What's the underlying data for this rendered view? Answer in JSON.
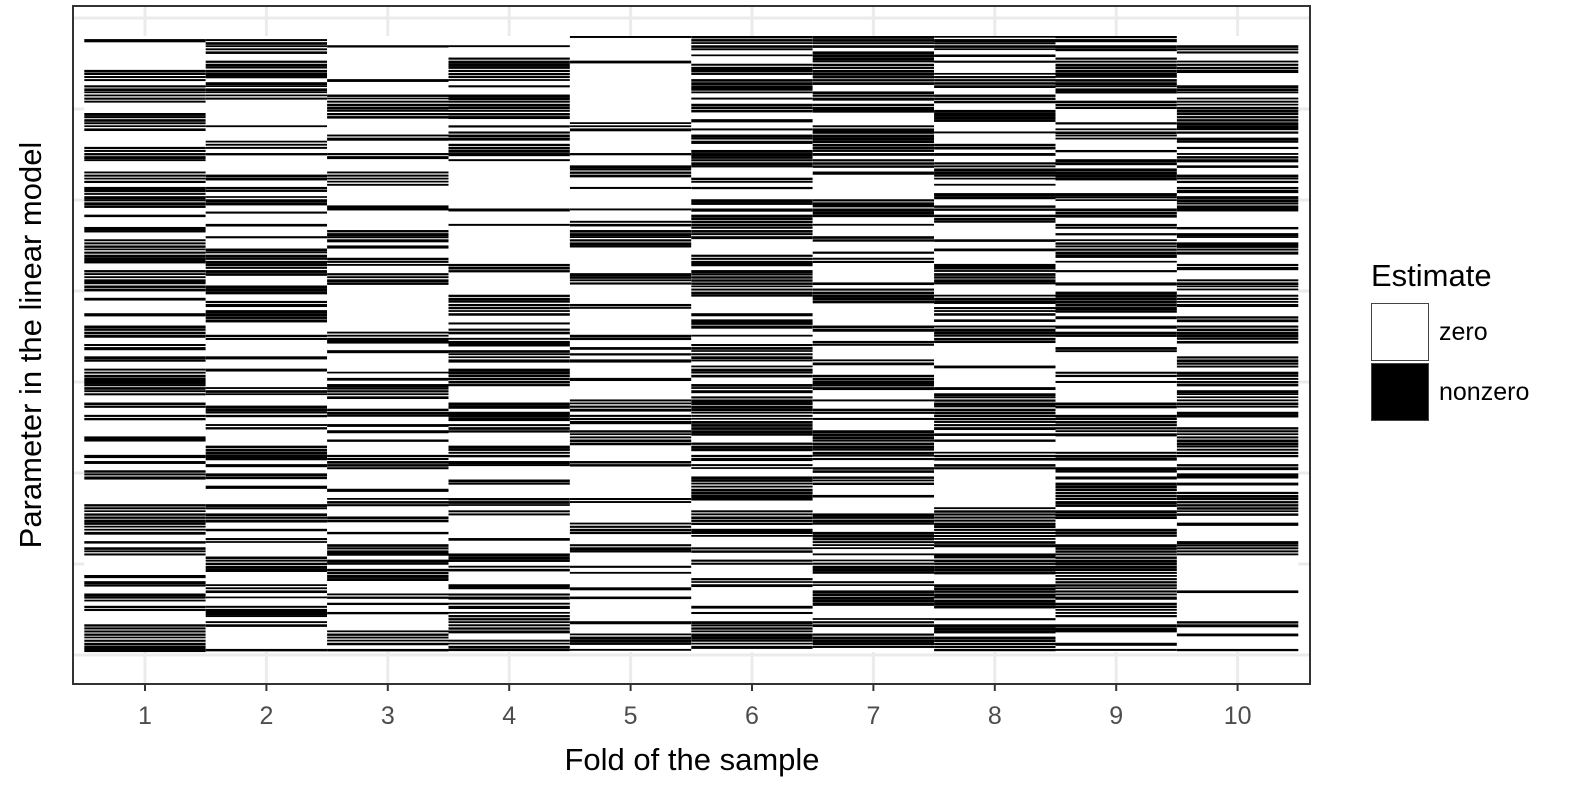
{
  "chart_data": {
    "type": "heatmap",
    "xlabel": "Fold of the sample",
    "ylabel": "Parameter in the linear model",
    "categories": [
      "1",
      "2",
      "3",
      "4",
      "5",
      "6",
      "7",
      "8",
      "9",
      "10"
    ],
    "n_parameters": 200,
    "legend": {
      "title": "Estimate",
      "placement": "right",
      "entries": [
        {
          "label": "zero",
          "color": "#ffffff"
        },
        {
          "label": "nonzero",
          "color": "#000000"
        }
      ]
    },
    "fold_nonzero_fraction": [
      0.4,
      0.38,
      0.4,
      0.4,
      0.28,
      0.44,
      0.44,
      0.46,
      0.52,
      0.46
    ],
    "grid": true,
    "colors": {
      "zero": "#ffffff",
      "nonzero": "#000000",
      "grid": "#ebebeb",
      "border": "#333333",
      "tick_text": "#4d4d4d"
    }
  }
}
